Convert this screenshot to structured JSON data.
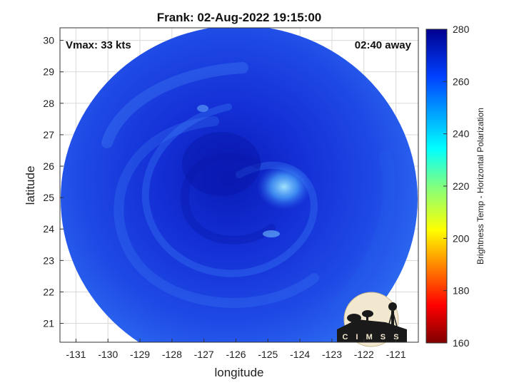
{
  "title": "Frank: 02-Aug-2022 19:15:00",
  "vmax_text": "Vmax: 33 kts",
  "time_away_text": "02:40 away",
  "x_axis": {
    "label": "longitude",
    "range": [
      -131.5,
      -120.3
    ],
    "ticks": [
      -131,
      -130,
      -129,
      -128,
      -127,
      -126,
      -125,
      -124,
      -123,
      -122,
      -121
    ]
  },
  "y_axis": {
    "label": "latitude",
    "range": [
      20.4,
      30.4
    ],
    "ticks": [
      21,
      22,
      23,
      24,
      25,
      26,
      27,
      28,
      29,
      30
    ]
  },
  "colorbar": {
    "label": "Brightness Temp - Horizontal Polarization",
    "range": [
      160,
      280
    ],
    "ticks": [
      160,
      180,
      200,
      220,
      240,
      260,
      280
    ],
    "colormap": "jet"
  },
  "storm_center": {
    "lon": -125.6,
    "lat": 25.9
  },
  "grid": true,
  "logo": {
    "text": "CIMSS",
    "icon": "cimss-logo-icon"
  },
  "colors": {
    "outer_blue": "#2d6cf0",
    "mid_blue": "#1a3fe0",
    "core_blue": "#0b1ec0",
    "bright_patch": "#7fd8ff",
    "grid": "#d9d9d9"
  }
}
